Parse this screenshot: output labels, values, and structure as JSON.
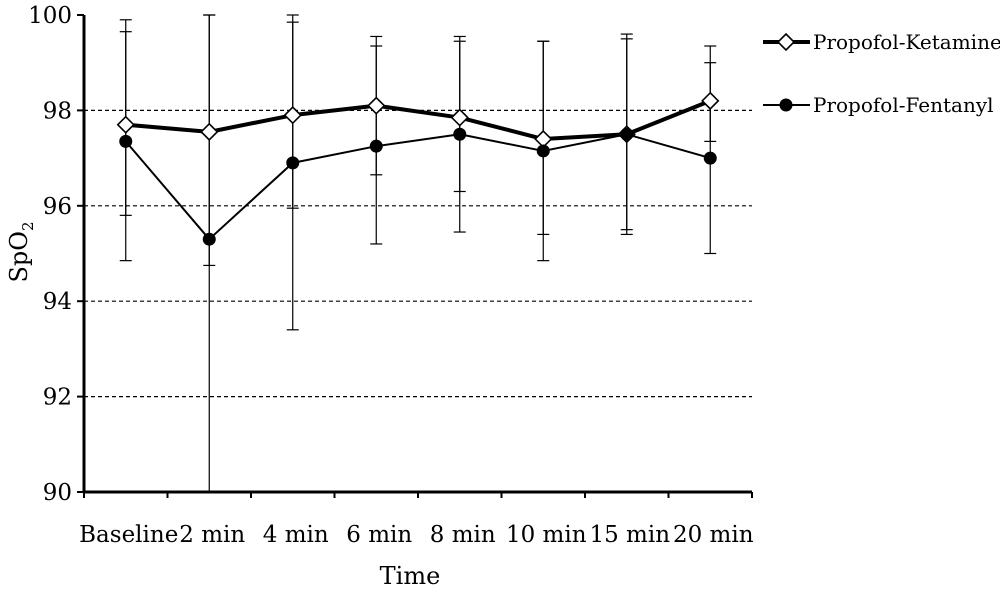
{
  "chart_data": {
    "type": "line",
    "title": "",
    "xlabel": "Time",
    "ylabel": "SpO",
    "ylabel_subscript": "2",
    "categories": [
      "Baseline",
      "2 min",
      "4 min",
      "6 min",
      "8 min",
      "10 min",
      "15 min",
      "20 min"
    ],
    "ylim": [
      90,
      100
    ],
    "yticks": [
      "90",
      "92",
      "94",
      "96",
      "98",
      "100"
    ],
    "grid": "horizontal dashed",
    "legend_position": "right",
    "series": [
      {
        "name": "Propofol-Ketamine",
        "marker": "open-diamond",
        "values": [
          97.7,
          97.55,
          97.9,
          98.1,
          97.85,
          97.4,
          97.5,
          98.2
        ],
        "err_high": [
          99.65,
          100.0,
          99.85,
          99.35,
          99.45,
          99.45,
          99.5,
          99.0
        ],
        "err_low": [
          95.8,
          94.75,
          95.95,
          96.65,
          96.3,
          95.4,
          95.5,
          97.35
        ]
      },
      {
        "name": "Propofol-Fentanyl",
        "marker": "filled-circle",
        "values": [
          97.35,
          95.3,
          96.9,
          97.25,
          97.5,
          97.15,
          97.5,
          97.0
        ],
        "err_high": [
          99.9,
          100.0,
          100.0,
          99.55,
          99.55,
          99.45,
          99.6,
          99.35
        ],
        "err_low": [
          94.85,
          90.0,
          93.4,
          95.2,
          95.45,
          94.85,
          95.4,
          95.0
        ]
      }
    ]
  }
}
